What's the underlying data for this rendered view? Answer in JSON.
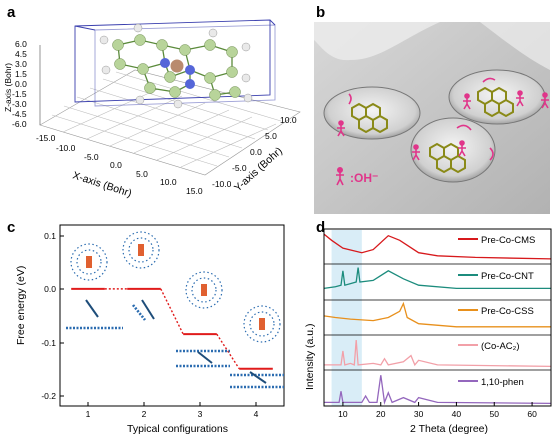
{
  "panels": {
    "a": {
      "label": "a",
      "z_axis_label": "Z-axis (Bohr)",
      "x_axis_label": "X-axis (Bohr)",
      "y_axis_label": "Y-axis (Bohr)",
      "z_ticks": [
        "6.0",
        "4.5",
        "3.0",
        "1.5",
        "0.0",
        "-1.5",
        "-3.0",
        "-4.5",
        "-6.0"
      ],
      "x_ticks": [
        "-15.0",
        "-10.0",
        "-5.0",
        "0.0",
        "5.0",
        "10.0",
        "15.0"
      ],
      "y_ticks": [
        "10.0",
        "5.0",
        "0.0",
        "-5.0",
        "-10.0"
      ]
    },
    "b": {
      "label": "b",
      "legend_text": ":OH⁻",
      "colors": {
        "surface": "#c8c8c8",
        "molecule": "#9a9a22",
        "oh": "#e0358a"
      }
    },
    "c": {
      "label": "c",
      "structure_icons": [
        "molecule-cluster-icon",
        "carbon-layer-icon"
      ],
      "colors": {
        "energy_level": "#e01b1b",
        "atoms": "#2b6cb0"
      }
    },
    "d": {
      "label": "d",
      "highlight_color": "#cfe9f5",
      "legend": [
        {
          "name": "Pre-Co-CMS",
          "color": "#d7191c"
        },
        {
          "name": "Pre-Co-CNT",
          "color": "#1c8c7d"
        },
        {
          "name": "Pre-Co-CSS",
          "color": "#e8901c"
        },
        {
          "name": "(Co-AC₂)",
          "color": "#f2a0a8"
        },
        {
          "name": "1,10-phen",
          "color": "#9467bd"
        }
      ]
    }
  },
  "chart_data": [
    {
      "panel": "c",
      "type": "line",
      "xlabel": "Typical configurations",
      "ylabel": "Free energy (eV)",
      "categories": [
        "1",
        "2",
        "3",
        "4"
      ],
      "values": [
        0.0,
        0.0,
        -0.085,
        -0.15
      ],
      "ylim": [
        -0.22,
        0.12
      ],
      "yticks": [
        0.1,
        0.0,
        -0.1,
        -0.2
      ],
      "ytick_labels": [
        "0.1",
        "0.0",
        "-0.1",
        "-0.2"
      ],
      "xlim": [
        0.5,
        4.5
      ],
      "grid": false
    },
    {
      "panel": "d",
      "type": "line",
      "xlabel": "2 Theta (degree)",
      "ylabel": "Intensity (a.u.)",
      "xlim": [
        5,
        65
      ],
      "xticks": [
        10,
        20,
        30,
        40,
        50,
        60
      ],
      "highlight_range": [
        7,
        15
      ],
      "series": [
        {
          "name": "Pre-Co-CMS",
          "x": [
            5,
            7,
            10,
            15,
            18,
            22,
            25,
            30,
            35,
            45,
            65
          ],
          "y": [
            0.9,
            0.7,
            0.45,
            0.3,
            0.4,
            0.85,
            0.7,
            0.3,
            0.2,
            0.15,
            0.1
          ]
        },
        {
          "name": "Pre-Co-CNT",
          "x": [
            5,
            8,
            9.5,
            10,
            10.5,
            12,
            13.5,
            14,
            14.5,
            18,
            22,
            26,
            30,
            40,
            65
          ],
          "y": [
            0.3,
            0.35,
            0.4,
            0.85,
            0.4,
            0.45,
            0.5,
            0.95,
            0.5,
            0.55,
            0.85,
            0.6,
            0.4,
            0.3,
            0.3
          ]
        },
        {
          "name": "Pre-Co-CSS",
          "x": [
            5,
            8,
            12,
            18,
            22,
            25,
            26,
            27,
            30,
            40,
            65
          ],
          "y": [
            0.55,
            0.5,
            0.45,
            0.4,
            0.5,
            0.7,
            0.95,
            0.5,
            0.3,
            0.2,
            0.2
          ]
        },
        {
          "name": "(Co-AC₂)",
          "x": [
            5,
            8,
            9.5,
            10,
            10.5,
            12,
            13,
            13.5,
            14,
            18,
            20,
            21,
            22,
            26,
            28,
            29,
            30,
            35,
            65
          ],
          "y": [
            0.1,
            0.1,
            0.1,
            0.55,
            0.1,
            0.15,
            0.1,
            0.9,
            0.1,
            0.15,
            0.1,
            0.3,
            0.1,
            0.2,
            0.4,
            0.1,
            0.25,
            0.1,
            0.05
          ]
        },
        {
          "name": "1,10-phen",
          "x": [
            5,
            9,
            9.5,
            10,
            15,
            16,
            17,
            19,
            20,
            21,
            22,
            23,
            26,
            29,
            30,
            35,
            65
          ],
          "y": [
            0.05,
            0.05,
            0.4,
            0.05,
            0.05,
            0.25,
            0.05,
            0.05,
            0.9,
            0.05,
            0.35,
            0.05,
            0.2,
            0.05,
            0.2,
            0.05,
            0.02
          ]
        }
      ]
    }
  ]
}
